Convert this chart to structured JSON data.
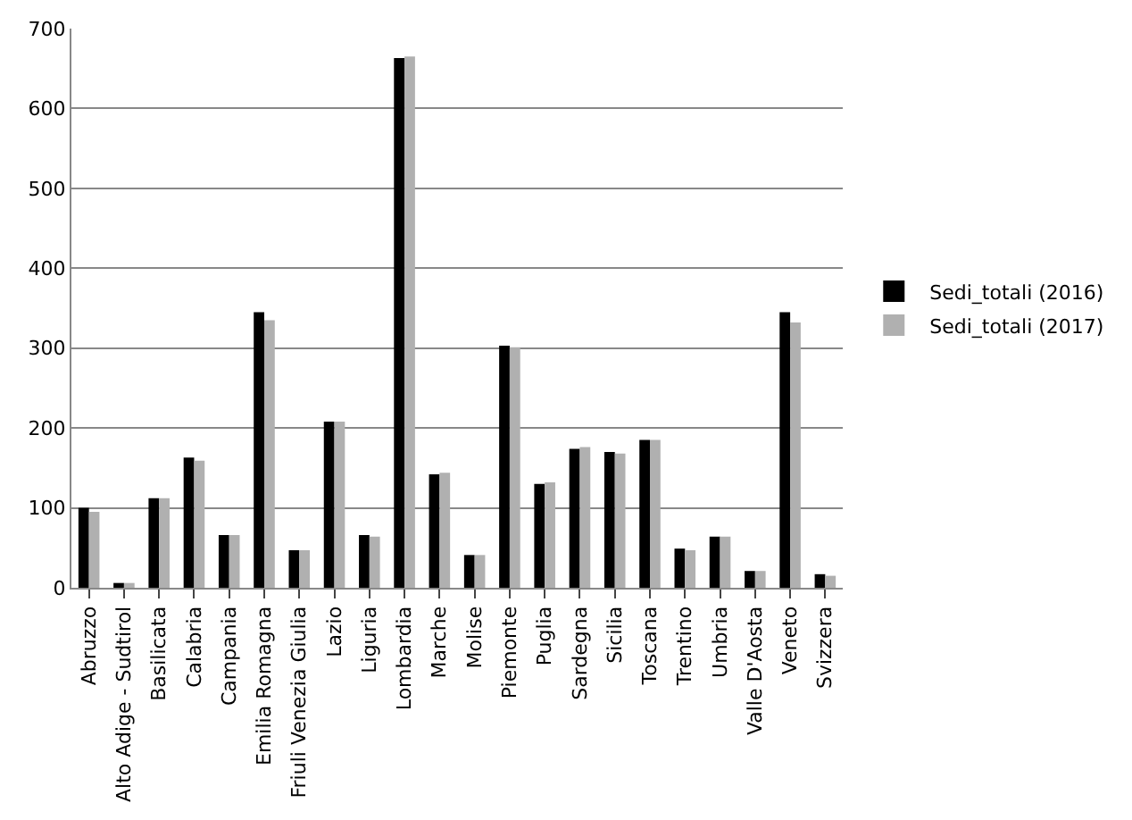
{
  "chart_data": {
    "type": "bar",
    "categories": [
      "Abruzzo",
      "Alto Adige - Sudtirol",
      "Basilicata",
      "Calabria",
      "Campania",
      "Emilia Romagna",
      "Friuli Venezia Giulia",
      "Lazio",
      "Liguria",
      "Lombardia",
      "Marche",
      "Molise",
      "Piemonte",
      "Puglia",
      "Sardegna",
      "Sicilia",
      "Toscana",
      "Trentino",
      "Umbria",
      "Valle D'Aosta",
      "Veneto",
      "Svizzera"
    ],
    "series": [
      {
        "name": "Sedi_totali (2016)",
        "color": "#000000",
        "values": [
          100,
          6,
          112,
          163,
          66,
          345,
          47,
          208,
          66,
          663,
          142,
          41,
          303,
          130,
          174,
          170,
          185,
          49,
          64,
          21,
          345,
          17
        ]
      },
      {
        "name": "Sedi_totali (2017)",
        "color": "#b0b0b0",
        "values": [
          95,
          6,
          112,
          159,
          66,
          335,
          47,
          208,
          64,
          665,
          144,
          41,
          301,
          132,
          176,
          168,
          185,
          47,
          64,
          21,
          332,
          15
        ]
      }
    ],
    "ylim": [
      0,
      700
    ],
    "yticks": [
      0,
      100,
      200,
      300,
      400,
      500,
      600,
      700
    ],
    "grid": "y",
    "legend": "right"
  }
}
